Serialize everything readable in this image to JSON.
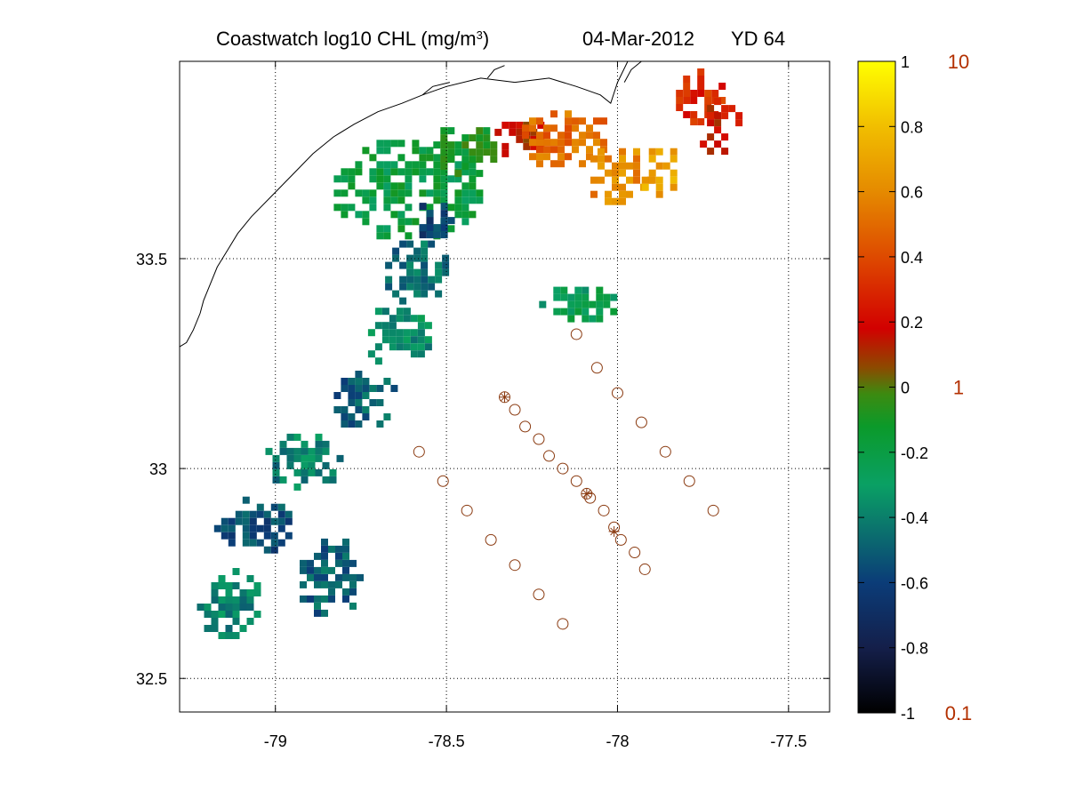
{
  "title": {
    "product": "Coastwatch  log10  CHL (mg/m",
    "unit_exponent": "3",
    "unit_close": ")",
    "date": "04-Mar-2012",
    "yearday": "YD 64"
  },
  "chart_data": {
    "type": "map",
    "xlim": [
      -79.28,
      -77.38
    ],
    "ylim": [
      32.42,
      33.97
    ],
    "x_ticks": [
      {
        "value": -79,
        "label": "-79"
      },
      {
        "value": -78.5,
        "label": "-78.5"
      },
      {
        "value": -78,
        "label": "-78"
      },
      {
        "value": -77.5,
        "label": "-77.5"
      }
    ],
    "y_ticks": [
      {
        "value": 33.5,
        "label": "33.5"
      },
      {
        "value": 33,
        "label": "33"
      },
      {
        "value": 32.5,
        "label": "32.5"
      }
    ],
    "grid": true,
    "grid_style": "dotted",
    "colorbar": {
      "clim": [
        -1,
        1
      ],
      "ticks": [
        {
          "value": 1,
          "label": "1"
        },
        {
          "value": 0.8,
          "label": "0.8"
        },
        {
          "value": 0.6,
          "label": "0.6"
        },
        {
          "value": 0.4,
          "label": "0.4"
        },
        {
          "value": 0.2,
          "label": "0.2"
        },
        {
          "value": 0,
          "label": "0"
        },
        {
          "value": -0.2,
          "label": "-0.2"
        },
        {
          "value": -0.4,
          "label": "-0.4"
        },
        {
          "value": -0.6,
          "label": "-0.6"
        },
        {
          "value": -0.8,
          "label": "-0.8"
        },
        {
          "value": -1,
          "label": "-1"
        }
      ],
      "linear_labels": [
        {
          "value": 1,
          "label": "10"
        },
        {
          "value": 0,
          "label": "1"
        },
        {
          "value": -1,
          "label": "0.1"
        }
      ],
      "colormap": [
        {
          "v": -1.0,
          "color": "#000000"
        },
        {
          "v": -0.8,
          "color": "#141f4a"
        },
        {
          "v": -0.6,
          "color": "#0b3c78"
        },
        {
          "v": -0.45,
          "color": "#0b6e6e"
        },
        {
          "v": -0.3,
          "color": "#0aa064"
        },
        {
          "v": -0.12,
          "color": "#0b9a2a"
        },
        {
          "v": -0.02,
          "color": "#3d8a10"
        },
        {
          "v": 0.06,
          "color": "#8c4a00"
        },
        {
          "v": 0.18,
          "color": "#d20000"
        },
        {
          "v": 0.4,
          "color": "#de4a00"
        },
        {
          "v": 0.6,
          "color": "#e58a00"
        },
        {
          "v": 0.8,
          "color": "#f1be00"
        },
        {
          "v": 1.0,
          "color": "#ffff00"
        }
      ]
    },
    "coastline": [
      [
        -79.28,
        33.29
      ],
      [
        -79.26,
        33.3
      ],
      [
        -79.24,
        33.33
      ],
      [
        -79.22,
        33.37
      ],
      [
        -79.21,
        33.4
      ],
      [
        -79.19,
        33.44
      ],
      [
        -79.17,
        33.48
      ],
      [
        -79.14,
        33.52
      ],
      [
        -79.11,
        33.56
      ],
      [
        -79.07,
        33.6
      ],
      [
        -79.01,
        33.65
      ],
      [
        -78.95,
        33.7
      ],
      [
        -78.89,
        33.75
      ],
      [
        -78.83,
        33.79
      ],
      [
        -78.77,
        33.82
      ],
      [
        -78.7,
        33.85
      ],
      [
        -78.63,
        33.87
      ],
      [
        -78.57,
        33.89
      ],
      [
        -78.5,
        33.91
      ],
      [
        -78.4,
        33.93
      ],
      [
        -78.3,
        33.92
      ],
      [
        -78.2,
        33.93
      ],
      [
        -78.12,
        33.91
      ],
      [
        -78.05,
        33.89
      ],
      [
        -78.02,
        33.87
      ],
      [
        -78.0,
        33.92
      ],
      [
        -77.97,
        33.97
      ]
    ],
    "rivers": [
      [
        [
          -78.57,
          33.89
        ],
        [
          -78.54,
          33.91
        ],
        [
          -78.49,
          33.92
        ]
      ],
      [
        [
          -78.38,
          33.93
        ],
        [
          -78.36,
          33.95
        ],
        [
          -78.33,
          33.96
        ]
      ],
      [
        [
          -77.98,
          33.92
        ],
        [
          -77.96,
          33.95
        ],
        [
          -77.93,
          33.97
        ]
      ]
    ],
    "stations_circle": [
      [
        -78.12,
        33.32
      ],
      [
        -78.06,
        33.24
      ],
      [
        -78.0,
        33.18
      ],
      [
        -77.93,
        33.11
      ],
      [
        -77.86,
        33.04
      ],
      [
        -77.79,
        32.97
      ],
      [
        -77.72,
        32.9
      ],
      [
        -78.33,
        33.17
      ],
      [
        -78.3,
        33.14
      ],
      [
        -78.27,
        33.1
      ],
      [
        -78.23,
        33.07
      ],
      [
        -78.2,
        33.03
      ],
      [
        -78.16,
        33.0
      ],
      [
        -78.12,
        32.97
      ],
      [
        -78.09,
        32.94
      ],
      [
        -78.08,
        32.93
      ],
      [
        -78.04,
        32.9
      ],
      [
        -78.01,
        32.86
      ],
      [
        -77.99,
        32.83
      ],
      [
        -77.95,
        32.8
      ],
      [
        -77.92,
        32.76
      ],
      [
        -78.58,
        33.04
      ],
      [
        -78.51,
        32.97
      ],
      [
        -78.44,
        32.9
      ],
      [
        -78.37,
        32.83
      ],
      [
        -78.3,
        32.77
      ],
      [
        -78.23,
        32.7
      ],
      [
        -78.16,
        32.63
      ]
    ],
    "stations_star": [
      [
        -78.33,
        33.17
      ],
      [
        -78.09,
        32.94
      ],
      [
        -78.01,
        32.85
      ]
    ],
    "chl_patches": [
      {
        "lon": [
          -78.85,
          -78.4
        ],
        "lat": [
          33.55,
          33.8
        ],
        "v": -0.2
      },
      {
        "lon": [
          -78.58,
          -78.34
        ],
        "lat": [
          33.7,
          33.83
        ],
        "v": -0.1
      },
      {
        "lon": [
          -78.38,
          -78.22
        ],
        "lat": [
          33.74,
          33.86
        ],
        "v": 0.15
      },
      {
        "lon": [
          -78.3,
          -78.02
        ],
        "lat": [
          33.72,
          33.87
        ],
        "v": 0.5
      },
      {
        "lon": [
          -78.1,
          -77.9
        ],
        "lat": [
          33.63,
          33.78
        ],
        "v": 0.6
      },
      {
        "lon": [
          -77.95,
          -77.82
        ],
        "lat": [
          33.65,
          33.78
        ],
        "v": 0.7
      },
      {
        "lon": [
          -77.85,
          -77.7
        ],
        "lat": [
          33.82,
          33.97
        ],
        "v": 0.3
      },
      {
        "lon": [
          -77.78,
          -77.65
        ],
        "lat": [
          33.75,
          33.9
        ],
        "v": 0.2
      },
      {
        "lon": [
          -78.6,
          -78.48
        ],
        "lat": [
          33.55,
          33.65
        ],
        "v": -0.6
      },
      {
        "lon": [
          -78.7,
          -78.5
        ],
        "lat": [
          33.4,
          33.56
        ],
        "v": -0.45
      },
      {
        "lon": [
          -78.75,
          -78.55
        ],
        "lat": [
          33.25,
          33.4
        ],
        "v": -0.35
      },
      {
        "lon": [
          -78.85,
          -78.65
        ],
        "lat": [
          33.1,
          33.25
        ],
        "v": -0.5
      },
      {
        "lon": [
          -79.05,
          -78.8
        ],
        "lat": [
          32.95,
          33.1
        ],
        "v": -0.4
      },
      {
        "lon": [
          -79.2,
          -78.95
        ],
        "lat": [
          32.8,
          32.95
        ],
        "v": -0.55
      },
      {
        "lon": [
          -79.25,
          -79.05
        ],
        "lat": [
          32.6,
          32.78
        ],
        "v": -0.4
      },
      {
        "lon": [
          -78.95,
          -78.75
        ],
        "lat": [
          32.65,
          32.85
        ],
        "v": -0.5
      },
      {
        "lon": [
          -78.25,
          -78.0
        ],
        "lat": [
          33.35,
          33.45
        ],
        "v": -0.25
      }
    ]
  }
}
